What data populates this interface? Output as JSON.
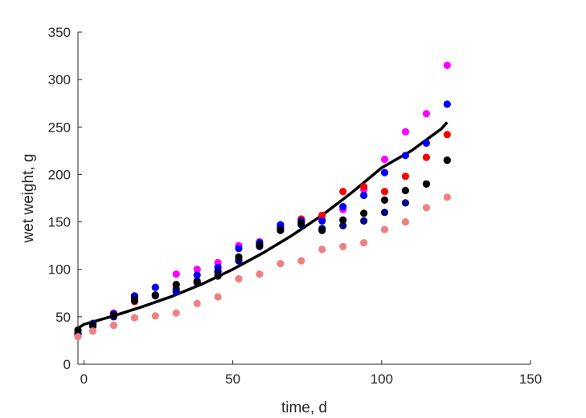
{
  "chart_data": {
    "type": "scatter",
    "title": "",
    "xlabel": "time, d",
    "ylabel": "wet weight, g",
    "xlim": [
      -2,
      150
    ],
    "ylim": [
      0,
      350
    ],
    "x_ticks": [
      0,
      50,
      100,
      150
    ],
    "y_ticks": [
      0,
      50,
      100,
      150,
      200,
      250,
      300,
      350
    ],
    "grid": false,
    "legend": "none",
    "series": [
      {
        "type": "scatter",
        "color": "#ff00ff",
        "points": [
          [
            -2,
            33
          ],
          [
            3,
            42
          ],
          [
            10,
            54
          ],
          [
            17,
            72
          ],
          [
            24,
            81
          ],
          [
            31,
            95
          ],
          [
            38,
            100
          ],
          [
            45,
            107
          ],
          [
            52,
            125
          ],
          [
            59,
            129
          ],
          [
            66,
            146
          ],
          [
            73,
            152
          ],
          [
            80,
            153
          ],
          [
            87,
            163
          ],
          [
            94,
            184
          ],
          [
            101,
            216
          ],
          [
            108,
            245
          ],
          [
            115,
            264
          ],
          [
            122,
            315
          ]
        ]
      },
      {
        "type": "scatter",
        "color": "#ff0000",
        "points": [
          [
            -2,
            31
          ],
          [
            3,
            40
          ],
          [
            10,
            51
          ],
          [
            17,
            66
          ],
          [
            24,
            73
          ],
          [
            31,
            80
          ],
          [
            38,
            88
          ],
          [
            45,
            96
          ],
          [
            52,
            111
          ],
          [
            59,
            126
          ],
          [
            66,
            145
          ],
          [
            73,
            153
          ],
          [
            80,
            157
          ],
          [
            87,
            182
          ],
          [
            94,
            187
          ],
          [
            101,
            182
          ],
          [
            108,
            198
          ],
          [
            115,
            218
          ],
          [
            122,
            242
          ]
        ]
      },
      {
        "type": "scatter",
        "color": "#0000ff",
        "points": [
          [
            -2,
            33
          ],
          [
            3,
            43
          ],
          [
            10,
            53
          ],
          [
            17,
            72
          ],
          [
            24,
            81
          ],
          [
            31,
            76
          ],
          [
            38,
            94
          ],
          [
            45,
            102
          ],
          [
            52,
            122
          ],
          [
            59,
            128
          ],
          [
            66,
            147
          ],
          [
            73,
            151
          ],
          [
            80,
            151
          ],
          [
            87,
            166
          ],
          [
            94,
            178
          ],
          [
            101,
            202
          ],
          [
            108,
            220
          ],
          [
            115,
            233
          ],
          [
            122,
            274
          ]
        ]
      },
      {
        "type": "scatter",
        "color": "#000080",
        "points": [
          [
            -2,
            31
          ],
          [
            3,
            40
          ],
          [
            10,
            50
          ],
          [
            17,
            70
          ],
          [
            24,
            72
          ],
          [
            31,
            78
          ],
          [
            38,
            87
          ],
          [
            45,
            98
          ],
          [
            52,
            109
          ],
          [
            59,
            124
          ],
          [
            66,
            143
          ],
          [
            73,
            147
          ],
          [
            80,
            143
          ],
          [
            87,
            146
          ],
          [
            94,
            151
          ],
          [
            101,
            160
          ],
          [
            108,
            170
          ],
          [
            115,
            190
          ],
          [
            122,
            215
          ]
        ]
      },
      {
        "type": "scatter",
        "color": "#000000",
        "points": [
          [
            -2,
            36
          ],
          [
            3,
            42
          ],
          [
            10,
            52
          ],
          [
            17,
            67
          ],
          [
            24,
            73
          ],
          [
            31,
            84
          ],
          [
            38,
            86
          ],
          [
            45,
            93
          ],
          [
            52,
            113
          ],
          [
            59,
            126
          ],
          [
            66,
            141
          ],
          [
            73,
            149
          ],
          [
            80,
            141
          ],
          [
            87,
            152
          ],
          [
            94,
            159
          ],
          [
            101,
            173
          ],
          [
            108,
            183
          ],
          [
            115,
            190
          ],
          [
            122,
            215
          ]
        ]
      },
      {
        "type": "scatter",
        "color": "#f08080",
        "points": [
          [
            -2,
            29
          ],
          [
            3,
            35
          ],
          [
            10,
            41
          ],
          [
            17,
            49
          ],
          [
            24,
            51
          ],
          [
            31,
            54
          ],
          [
            38,
            64
          ],
          [
            45,
            71
          ],
          [
            52,
            90
          ],
          [
            59,
            95
          ],
          [
            66,
            106
          ],
          [
            73,
            109
          ],
          [
            80,
            121
          ],
          [
            87,
            124
          ],
          [
            94,
            128
          ],
          [
            101,
            142
          ],
          [
            108,
            150
          ],
          [
            115,
            165
          ],
          [
            122,
            176
          ]
        ]
      },
      {
        "type": "line",
        "color": "#000000",
        "points": [
          [
            -1.5,
            39
          ],
          [
            0,
            42
          ],
          [
            10,
            51
          ],
          [
            20,
            61
          ],
          [
            30,
            72
          ],
          [
            40,
            85
          ],
          [
            50,
            100
          ],
          [
            60,
            117
          ],
          [
            70,
            136
          ],
          [
            80,
            157
          ],
          [
            90,
            181
          ],
          [
            100,
            207
          ],
          [
            110,
            225
          ],
          [
            120,
            248
          ],
          [
            122,
            255
          ]
        ]
      }
    ]
  }
}
